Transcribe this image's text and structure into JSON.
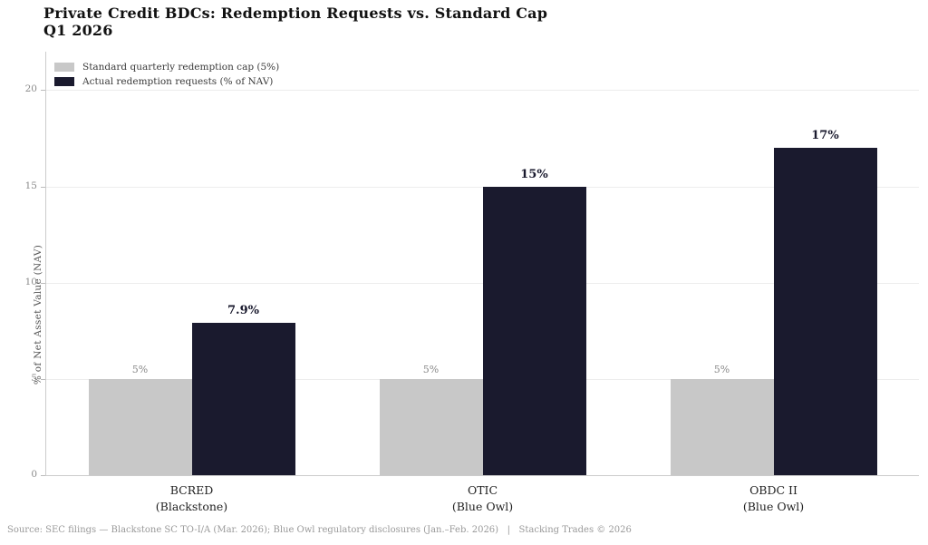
{
  "title": {
    "line1": "Private Credit BDCs: Redemption Requests vs. Standard Cap",
    "line2": "Q1 2026"
  },
  "chart_data": {
    "type": "bar",
    "categories": [
      {
        "label": "BCRED",
        "sublabel": "(Blackstone)"
      },
      {
        "label": "OTIC",
        "sublabel": "(Blue Owl)"
      },
      {
        "label": "OBDC II",
        "sublabel": "(Blue Owl)"
      }
    ],
    "series": [
      {
        "name": "Standard quarterly redemption cap (5%)",
        "color": "#c8c8c8",
        "values": [
          5,
          5,
          5
        ],
        "value_labels": [
          "5%",
          "5%",
          "5%"
        ],
        "label_style": "muted"
      },
      {
        "name": "Actual redemption requests (% of NAV)",
        "color": "#1a1a2e",
        "values": [
          7.9,
          15,
          17
        ],
        "value_labels": [
          "7.9%",
          "15%",
          "17%"
        ],
        "label_style": "bold"
      }
    ],
    "xlabel": "",
    "ylabel": "% of Net Asset Value (NAV)",
    "yticks": [
      0,
      5,
      10,
      15,
      20
    ],
    "ylim": [
      0,
      22
    ],
    "grid": true,
    "legend_position": "upper-left"
  },
  "footer": {
    "text": "Source: SEC filings — Blackstone SC TO-I/A (Mar. 2026); Blue Owl regulatory disclosures (Jan.–Feb. 2026)   |   Stacking Trades © 2026"
  }
}
